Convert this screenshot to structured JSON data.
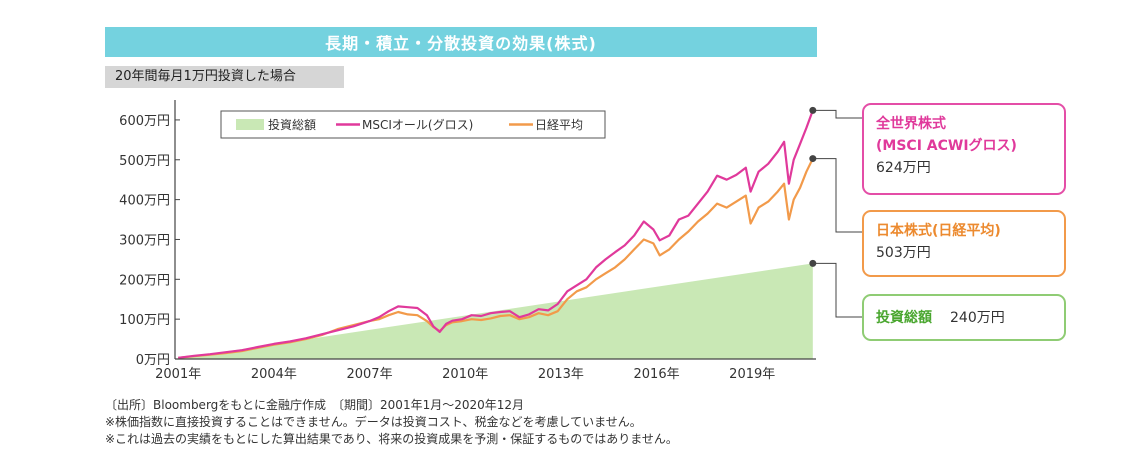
{
  "title": "長期・積立・分散投資の効果(株式)",
  "subtitle": "20年間毎月1万円投資した場合",
  "chart_data": {
    "type": "line",
    "x_unit": "year",
    "xlim": [
      2000.9,
      2021.0
    ],
    "ylim": [
      0,
      650
    ],
    "y_ticks": [
      0,
      100,
      200,
      300,
      400,
      500,
      600
    ],
    "y_tick_labels": [
      "0万円",
      "100万円",
      "200万円",
      "300万円",
      "400万円",
      "500万円",
      "600万円"
    ],
    "x_ticks": [
      2001,
      2004,
      2007,
      2010,
      2013,
      2016,
      2019
    ],
    "x_tick_labels": [
      "2001年",
      "2004年",
      "2007年",
      "2010年",
      "2013年",
      "2016年",
      "2019年"
    ],
    "legend": [
      "投資総額",
      "MSCIオール(グロス)",
      "日経平均"
    ],
    "legend_position": "top-left",
    "series": [
      {
        "name": "投資総額",
        "kind": "area",
        "color": "#c9e8b5",
        "x": [
          2001.0,
          2020.9
        ],
        "y": [
          1,
          240
        ]
      },
      {
        "name": "MSCIオール(グロス)",
        "kind": "line",
        "color": "#e0399b",
        "x": [
          2001.0,
          2001.5,
          2002.0,
          2002.5,
          2003.0,
          2003.5,
          2004.0,
          2004.5,
          2005.0,
          2005.5,
          2006.0,
          2006.5,
          2007.0,
          2007.3,
          2007.6,
          2007.9,
          2008.2,
          2008.5,
          2008.8,
          2009.0,
          2009.2,
          2009.4,
          2009.6,
          2009.9,
          2010.2,
          2010.5,
          2010.8,
          2011.1,
          2011.4,
          2011.7,
          2012.0,
          2012.3,
          2012.6,
          2012.9,
          2013.2,
          2013.5,
          2013.8,
          2014.1,
          2014.4,
          2014.7,
          2015.0,
          2015.3,
          2015.6,
          2015.9,
          2016.1,
          2016.4,
          2016.7,
          2017.0,
          2017.3,
          2017.6,
          2017.9,
          2018.2,
          2018.5,
          2018.8,
          2018.95,
          2019.2,
          2019.5,
          2019.8,
          2020.0,
          2020.15,
          2020.3,
          2020.5,
          2020.7,
          2020.9
        ],
        "y": [
          3,
          8,
          12,
          17,
          22,
          30,
          38,
          44,
          52,
          62,
          72,
          82,
          95,
          105,
          120,
          132,
          130,
          128,
          110,
          82,
          68,
          88,
          96,
          100,
          110,
          108,
          115,
          118,
          120,
          105,
          112,
          125,
          122,
          138,
          170,
          185,
          200,
          230,
          250,
          268,
          285,
          310,
          345,
          325,
          298,
          310,
          350,
          360,
          390,
          420,
          460,
          450,
          462,
          480,
          420,
          470,
          490,
          520,
          545,
          440,
          500,
          540,
          580,
          624
        ]
      },
      {
        "name": "日経平均",
        "kind": "line",
        "color": "#f29a4a",
        "x": [
          2001.0,
          2001.5,
          2002.0,
          2002.5,
          2003.0,
          2003.5,
          2004.0,
          2004.5,
          2005.0,
          2005.5,
          2006.0,
          2006.5,
          2007.0,
          2007.3,
          2007.6,
          2007.9,
          2008.2,
          2008.5,
          2008.8,
          2009.0,
          2009.2,
          2009.4,
          2009.6,
          2009.9,
          2010.2,
          2010.5,
          2010.8,
          2011.1,
          2011.4,
          2011.7,
          2012.0,
          2012.3,
          2012.6,
          2012.9,
          2013.2,
          2013.5,
          2013.8,
          2014.1,
          2014.4,
          2014.7,
          2015.0,
          2015.3,
          2015.6,
          2015.9,
          2016.1,
          2016.4,
          2016.7,
          2017.0,
          2017.3,
          2017.6,
          2017.9,
          2018.2,
          2018.5,
          2018.8,
          2018.95,
          2019.2,
          2019.5,
          2019.8,
          2020.0,
          2020.15,
          2020.3,
          2020.5,
          2020.7,
          2020.9
        ],
        "y": [
          3,
          7,
          11,
          15,
          20,
          28,
          36,
          42,
          50,
          60,
          75,
          85,
          95,
          100,
          110,
          118,
          112,
          110,
          95,
          80,
          70,
          85,
          92,
          95,
          100,
          98,
          102,
          108,
          110,
          100,
          105,
          115,
          110,
          120,
          150,
          170,
          180,
          200,
          215,
          230,
          250,
          275,
          300,
          290,
          260,
          275,
          300,
          320,
          345,
          365,
          390,
          380,
          395,
          410,
          340,
          380,
          395,
          420,
          440,
          350,
          400,
          430,
          470,
          503
        ]
      }
    ]
  },
  "callouts": [
    {
      "title_line1": "全世界株式",
      "title_line2": "(MSCI ACWIグロス)",
      "value": "624万円"
    },
    {
      "title": "日本株式(日経平均)",
      "value": "503万円"
    },
    {
      "title": "投資総額",
      "value": "240万円"
    }
  ],
  "notes": [
    "〔出所〕Bloombergをもとに金融庁作成　〔期間〕2001年1月〜2020年12月",
    "※株価指数に直接投資することはできません。データは投資コスト、税金などを考慮していません。",
    "※これは過去の実績をもとにした算出結果であり、将来の投資成果を予測・保証するものではありません。"
  ]
}
